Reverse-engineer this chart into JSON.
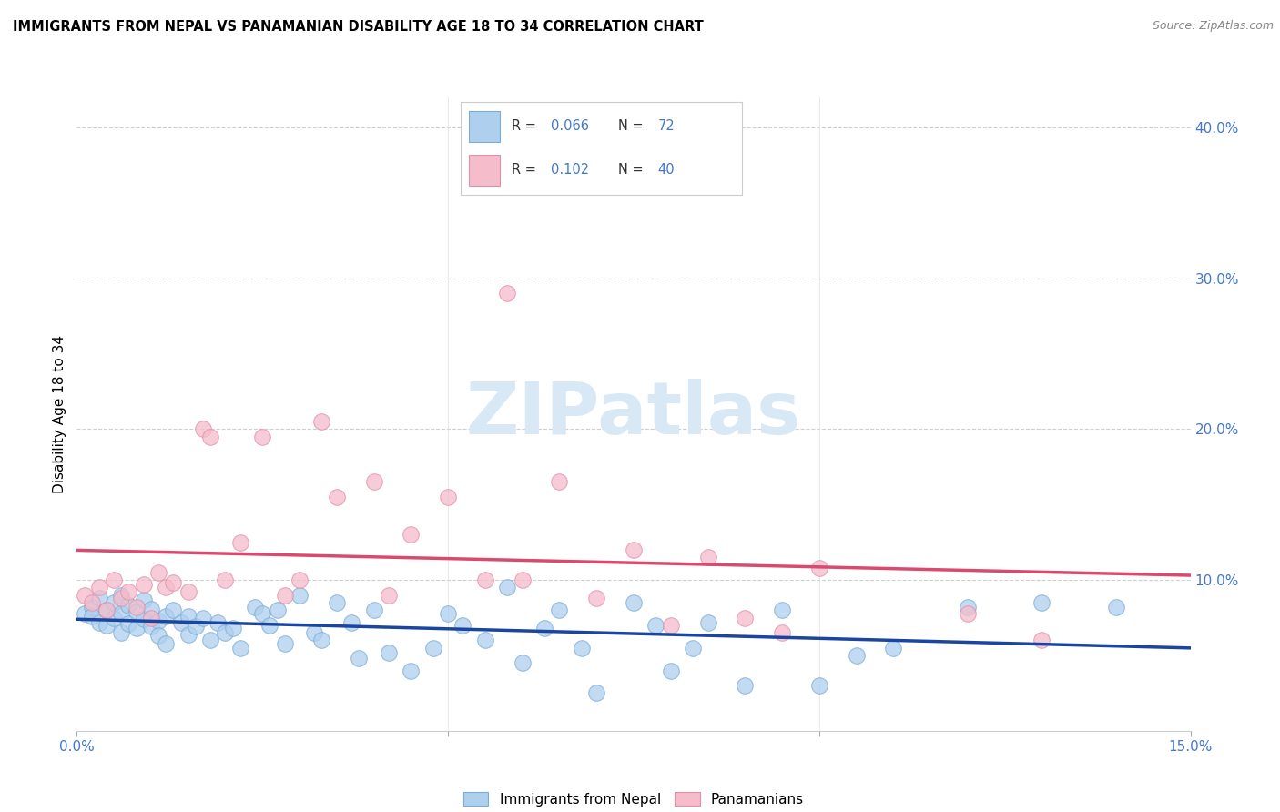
{
  "title": "IMMIGRANTS FROM NEPAL VS PANAMANIAN DISABILITY AGE 18 TO 34 CORRELATION CHART",
  "source": "Source: ZipAtlas.com",
  "ylabel_label": "Disability Age 18 to 34",
  "xlim": [
    0.0,
    0.15
  ],
  "ylim": [
    0.0,
    0.42
  ],
  "nepal_R": 0.066,
  "nepal_N": 72,
  "panama_R": 0.102,
  "panama_N": 40,
  "nepal_color": "#aecfee",
  "nepal_edge_color": "#7badd4",
  "nepal_line_color": "#1a45a0",
  "panama_color": "#f5bccb",
  "panama_edge_color": "#e090aa",
  "panama_line_color": "#d94a6e",
  "watermark_color": "#d8e8f5",
  "background_color": "#ffffff",
  "grid_color": "#d0d0d0",
  "nepal_scatter_x": [
    0.001,
    0.002,
    0.002,
    0.003,
    0.003,
    0.004,
    0.004,
    0.005,
    0.005,
    0.006,
    0.006,
    0.006,
    0.007,
    0.007,
    0.008,
    0.008,
    0.009,
    0.009,
    0.01,
    0.01,
    0.011,
    0.011,
    0.012,
    0.012,
    0.013,
    0.014,
    0.015,
    0.015,
    0.016,
    0.017,
    0.018,
    0.019,
    0.02,
    0.021,
    0.022,
    0.024,
    0.025,
    0.026,
    0.027,
    0.028,
    0.03,
    0.032,
    0.033,
    0.035,
    0.037,
    0.038,
    0.04,
    0.042,
    0.045,
    0.048,
    0.05,
    0.052,
    0.055,
    0.058,
    0.06,
    0.063,
    0.065,
    0.068,
    0.07,
    0.075,
    0.078,
    0.08,
    0.083,
    0.085,
    0.09,
    0.095,
    0.1,
    0.105,
    0.11,
    0.12,
    0.13,
    0.14
  ],
  "nepal_scatter_y": [
    0.078,
    0.082,
    0.076,
    0.088,
    0.072,
    0.08,
    0.07,
    0.085,
    0.075,
    0.09,
    0.078,
    0.065,
    0.083,
    0.071,
    0.079,
    0.068,
    0.087,
    0.074,
    0.081,
    0.069,
    0.073,
    0.063,
    0.076,
    0.058,
    0.08,
    0.072,
    0.076,
    0.064,
    0.069,
    0.075,
    0.06,
    0.072,
    0.065,
    0.068,
    0.055,
    0.082,
    0.078,
    0.07,
    0.08,
    0.058,
    0.09,
    0.065,
    0.06,
    0.085,
    0.072,
    0.048,
    0.08,
    0.052,
    0.04,
    0.055,
    0.078,
    0.07,
    0.06,
    0.095,
    0.045,
    0.068,
    0.08,
    0.055,
    0.025,
    0.085,
    0.07,
    0.04,
    0.055,
    0.072,
    0.03,
    0.08,
    0.03,
    0.05,
    0.055,
    0.082,
    0.085,
    0.082
  ],
  "panama_scatter_x": [
    0.001,
    0.002,
    0.003,
    0.004,
    0.005,
    0.006,
    0.007,
    0.008,
    0.009,
    0.01,
    0.011,
    0.012,
    0.013,
    0.015,
    0.017,
    0.018,
    0.02,
    0.022,
    0.025,
    0.028,
    0.03,
    0.033,
    0.035,
    0.04,
    0.042,
    0.045,
    0.05,
    0.055,
    0.058,
    0.06,
    0.065,
    0.07,
    0.075,
    0.08,
    0.085,
    0.09,
    0.095,
    0.1,
    0.12,
    0.13
  ],
  "panama_scatter_y": [
    0.09,
    0.085,
    0.095,
    0.08,
    0.1,
    0.088,
    0.092,
    0.082,
    0.097,
    0.075,
    0.105,
    0.095,
    0.098,
    0.092,
    0.2,
    0.195,
    0.1,
    0.125,
    0.195,
    0.09,
    0.1,
    0.205,
    0.155,
    0.165,
    0.09,
    0.13,
    0.155,
    0.1,
    0.29,
    0.1,
    0.165,
    0.088,
    0.12,
    0.07,
    0.115,
    0.075,
    0.065,
    0.108,
    0.078,
    0.06
  ],
  "title_fontsize": 10.5,
  "source_fontsize": 9,
  "tick_fontsize": 11,
  "ylabel_fontsize": 11,
  "legend_fontsize": 11,
  "watermark": "ZIPatlas"
}
